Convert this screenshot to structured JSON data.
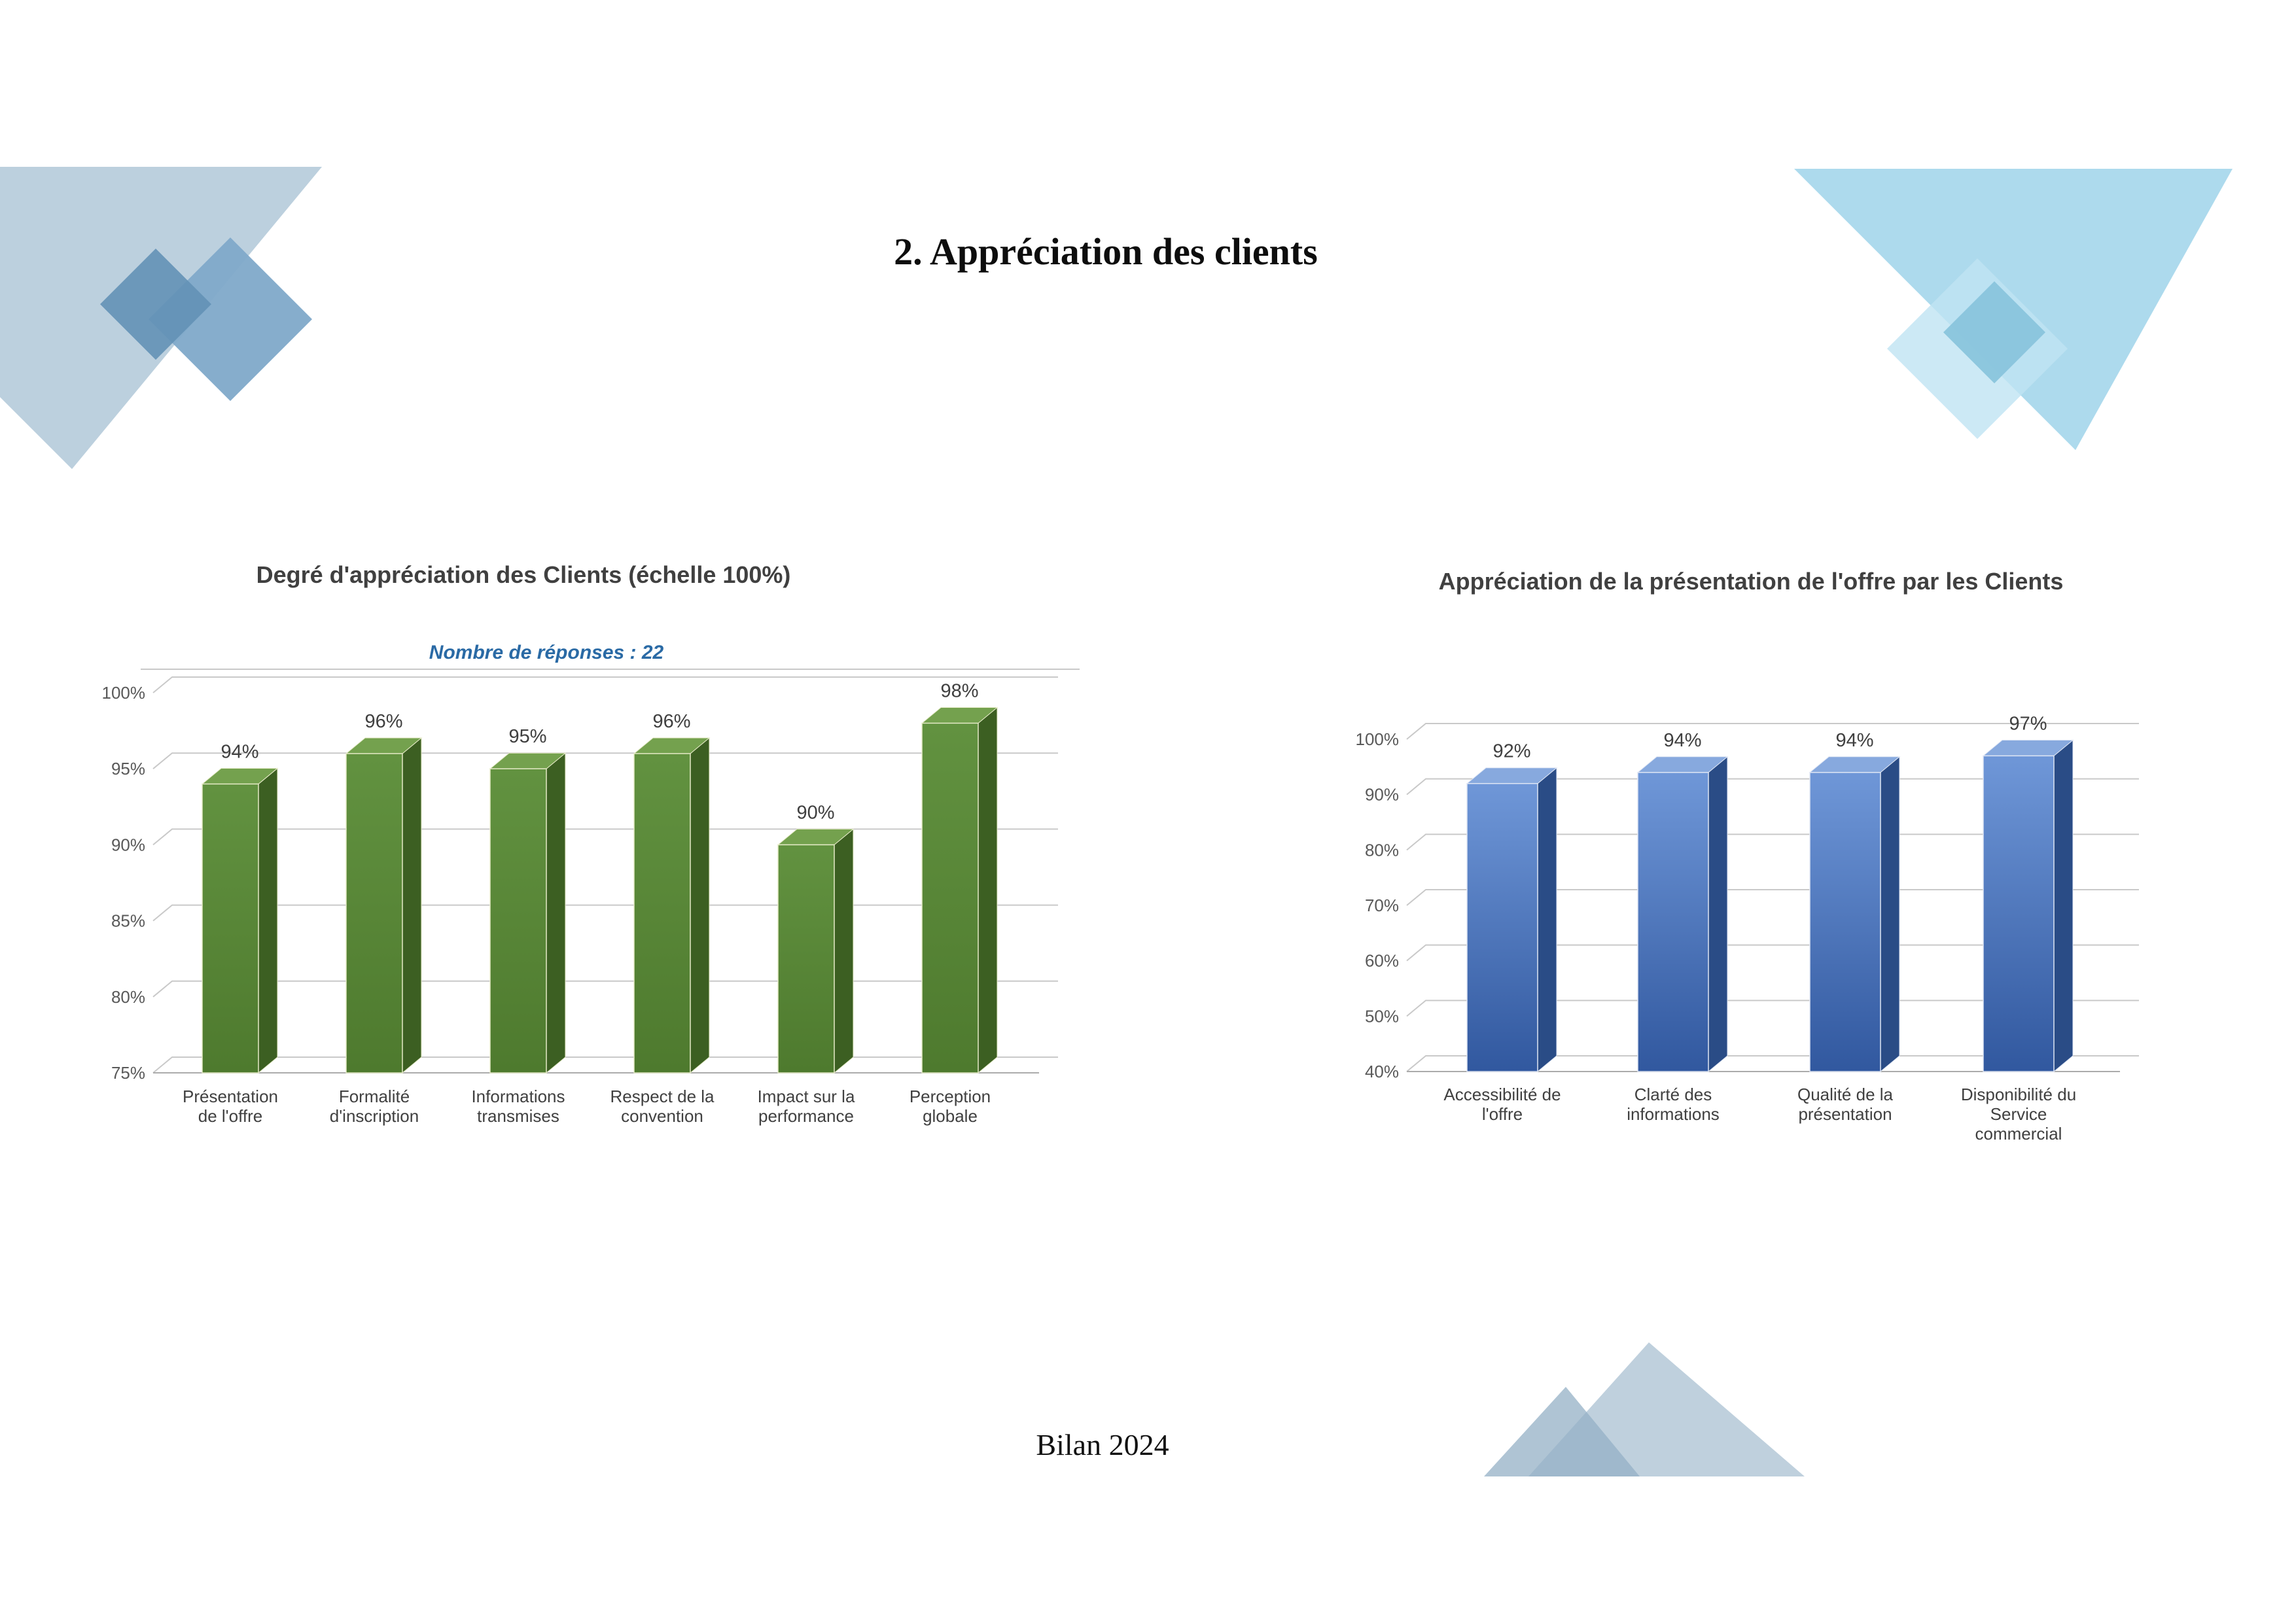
{
  "slide": {
    "title": "2. Appréciation des clients",
    "footer": "Bilan 2024",
    "background": "#ffffff"
  },
  "decor": {
    "palette": {
      "pale_blue": "#b0c8d8",
      "medium_blue": "#7fa9c9",
      "deep_blue": "#6391b6",
      "sky_blue": "#a9d8ec",
      "light_sky": "#bfe4f2",
      "mid_sky": "#86c3dc",
      "mountain": "#94b0c6"
    }
  },
  "chart_data": [
    {
      "type": "bar",
      "style": "3d-column",
      "title": "Degré d'appréciation des Clients (échelle 100%)",
      "subtitle": "Nombre de réponses : 22",
      "categories": [
        "Présentation de l'offre",
        "Formalité d'inscription",
        "Informations transmises",
        "Respect de la convention",
        "Impact sur la performance",
        "Perception globale"
      ],
      "category_lines": [
        [
          "Présentation",
          "de l'offre"
        ],
        [
          "Formalité",
          "d'inscription"
        ],
        [
          "Informations",
          "transmises"
        ],
        [
          "Respect de la",
          "convention"
        ],
        [
          "Impact sur la",
          "performance"
        ],
        [
          "Perception",
          "globale"
        ]
      ],
      "values": [
        94,
        96,
        95,
        96,
        90,
        98
      ],
      "data_labels": [
        "94%",
        "96%",
        "95%",
        "96%",
        "90%",
        "98%"
      ],
      "xlabel": "",
      "ylabel": "",
      "ylim": [
        75,
        100
      ],
      "ytick_step": 5,
      "ytick_labels": [
        "75%",
        "80%",
        "85%",
        "90%",
        "95%",
        "100%"
      ],
      "grid": true,
      "legend": "none",
      "colors": {
        "front": "#4e7a2e",
        "front_light": "#629240",
        "top": "#74a14e",
        "side": "#3c5f22",
        "outline": "#e6ebc8",
        "grid_line": "#c9c9c9",
        "axis_text": "#595959",
        "label_text": "#3f3f3f"
      }
    },
    {
      "type": "bar",
      "style": "3d-column",
      "title": "Appréciation de la présentation de l'offre par les Clients",
      "subtitle": "",
      "categories": [
        "Accessibilité de l'offre",
        "Clarté des informations",
        "Qualité de la présentation",
        "Disponibilité du Service commercial"
      ],
      "category_lines": [
        [
          "Accessibilité de",
          "l'offre"
        ],
        [
          "Clarté des",
          "informations"
        ],
        [
          "Qualité de la",
          "présentation"
        ],
        [
          "Disponibilité du",
          "Service",
          "commercial"
        ]
      ],
      "values": [
        92,
        94,
        94,
        97
      ],
      "data_labels": [
        "92%",
        "94%",
        "94%",
        "97%"
      ],
      "xlabel": "",
      "ylabel": "",
      "ylim": [
        40,
        100
      ],
      "ytick_step": 10,
      "ytick_labels": [
        "40%",
        "50%",
        "60%",
        "70%",
        "80%",
        "90%",
        "100%"
      ],
      "grid": true,
      "legend": "none",
      "colors": {
        "front": "#31589f",
        "front_light": "#6f97d8",
        "top": "#87a9de",
        "side": "#2a4c86",
        "outline": "#dfe6f4",
        "grid_line": "#c9c9c9",
        "axis_text": "#595959",
        "label_text": "#3f3f3f"
      }
    }
  ]
}
